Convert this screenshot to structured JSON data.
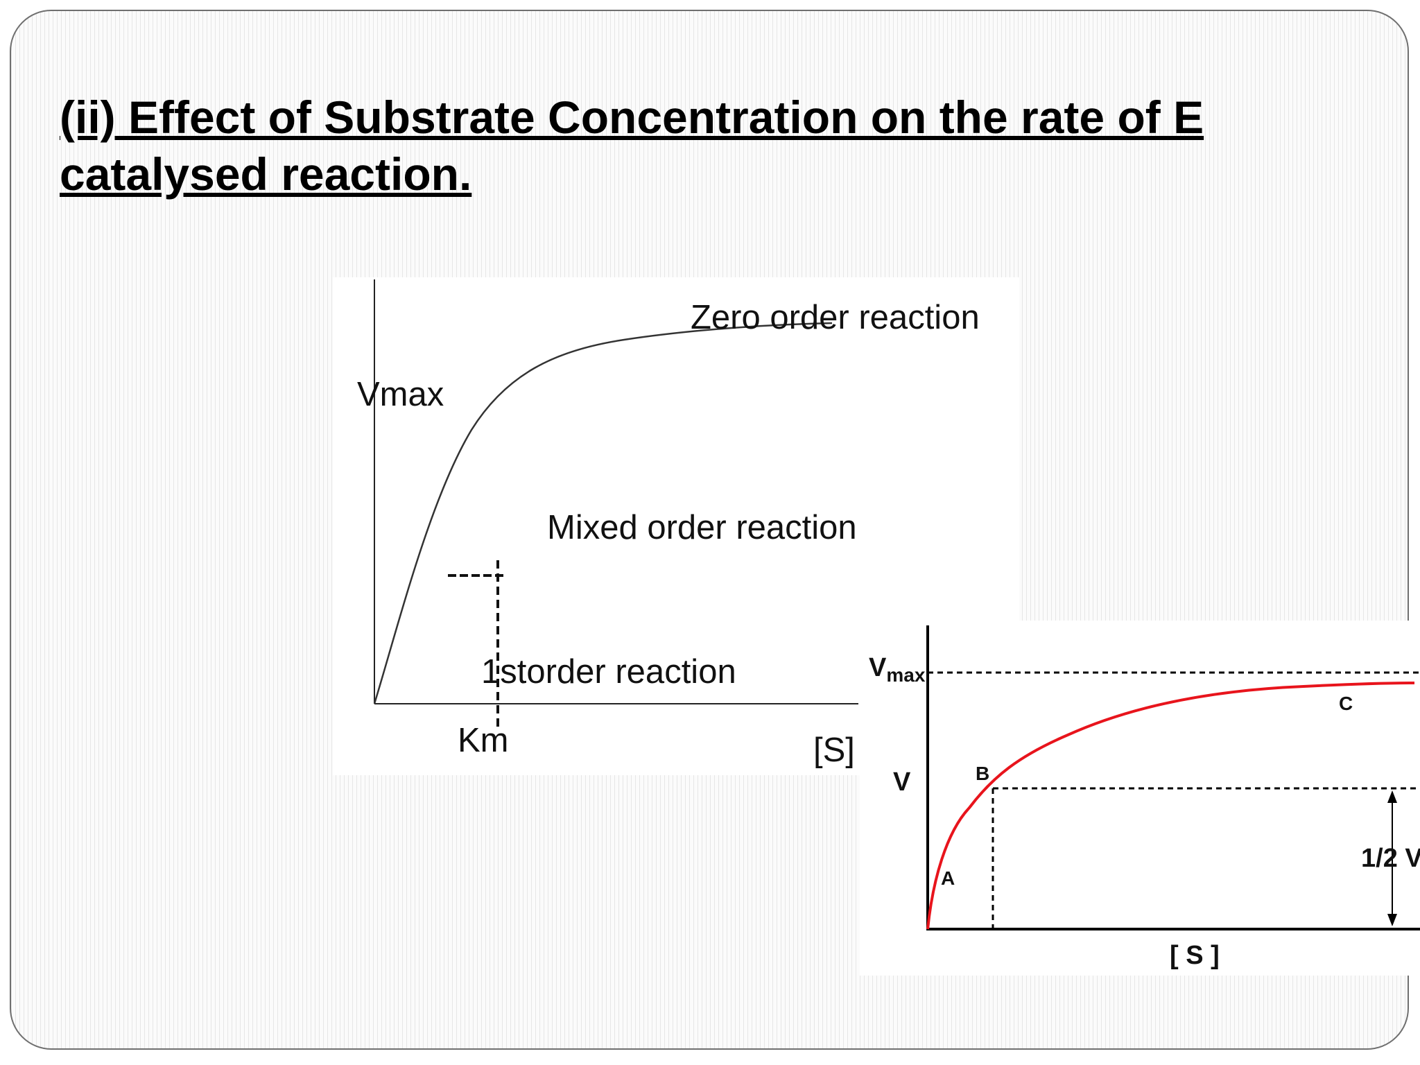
{
  "slide": {
    "title_line1": "(ii) Effect of Substrate Concentration on the rate of E",
    "title_line2": "catalysed reaction."
  },
  "figure1": {
    "labels": {
      "vmax": "Vmax",
      "zero_order": "Zero order reaction",
      "mixed_order": "Mixed order reaction",
      "first_order": "1storder reaction",
      "km": "Km",
      "x_axis": "[S]"
    }
  },
  "figure2": {
    "labels": {
      "vmax_base": "V",
      "vmax_sub": "max",
      "v": "V",
      "point_a": "A",
      "point_b": "B",
      "point_c": "C",
      "half_v": "1/2 V",
      "x_axis": "[ S ]"
    },
    "colors": {
      "curve": "#e8141c"
    }
  }
}
